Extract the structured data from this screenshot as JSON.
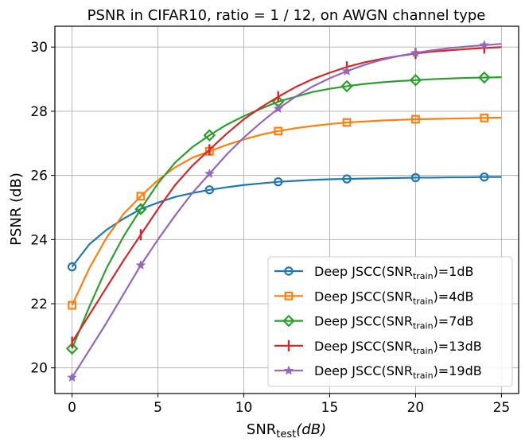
{
  "chart_data": {
    "type": "line",
    "title": "PSNR in CIFAR10, ratio = 1 / 12, on AWGN channel type",
    "xlabel_main": "SNR",
    "xlabel_sub": "test",
    "xlabel_unit": "(dB)",
    "ylabel": "PSNR (dB)",
    "xlim": [
      -1.0,
      26.0
    ],
    "ylim": [
      19.2,
      30.65
    ],
    "xticks": [
      0,
      5,
      10,
      15,
      20,
      25
    ],
    "yticks": [
      20,
      22,
      24,
      26,
      28,
      30
    ],
    "grid": true,
    "legend_position": "lower-right",
    "series": [
      {
        "name": "Deep JSCC(SNR_train)=1dB",
        "legend_prefix": "Deep JSCC(SNR",
        "legend_sub": "train",
        "legend_suffix": ")=1dB",
        "color": "#1f77b4",
        "marker": "circle",
        "x": [
          0,
          1,
          2,
          3,
          4,
          5,
          6,
          7,
          8,
          9,
          10,
          11,
          12,
          13,
          14,
          15,
          16,
          17,
          18,
          19,
          20,
          21,
          22,
          23,
          24,
          25
        ],
        "y": [
          23.15,
          23.85,
          24.3,
          24.65,
          24.95,
          25.15,
          25.33,
          25.45,
          25.55,
          25.63,
          25.7,
          25.75,
          25.8,
          25.83,
          25.86,
          25.88,
          25.89,
          25.9,
          25.91,
          25.92,
          25.93,
          25.93,
          25.94,
          25.94,
          25.95,
          25.95
        ],
        "marker_x": [
          0,
          4,
          8,
          12,
          16,
          20,
          24
        ]
      },
      {
        "name": "Deep JSCC(SNR_train)=4dB",
        "legend_prefix": "Deep JSCC(SNR",
        "legend_sub": "train",
        "legend_suffix": ")=4dB",
        "color": "#ff7f0e",
        "marker": "square",
        "x": [
          0,
          1,
          2,
          3,
          4,
          5,
          6,
          7,
          8,
          9,
          10,
          11,
          12,
          13,
          14,
          15,
          16,
          17,
          18,
          19,
          20,
          21,
          22,
          23,
          24,
          25
        ],
        "y": [
          21.95,
          23.1,
          24.05,
          24.8,
          25.35,
          25.85,
          26.25,
          26.55,
          26.75,
          26.95,
          27.12,
          27.27,
          27.38,
          27.47,
          27.54,
          27.6,
          27.65,
          27.68,
          27.71,
          27.73,
          27.75,
          27.76,
          27.77,
          27.78,
          27.79,
          27.8
        ],
        "marker_x": [
          0,
          4,
          8,
          12,
          16,
          20,
          24
        ]
      },
      {
        "name": "Deep JSCC(SNR_train)=7dB",
        "legend_prefix": "Deep JSCC(SNR",
        "legend_sub": "train",
        "legend_suffix": ")=7dB",
        "color": "#2ca02c",
        "marker": "diamond",
        "x": [
          0,
          1,
          2,
          3,
          4,
          5,
          6,
          7,
          8,
          9,
          10,
          11,
          12,
          13,
          14,
          15,
          16,
          17,
          18,
          19,
          20,
          21,
          22,
          23,
          24,
          25
        ],
        "y": [
          20.6,
          21.9,
          23.1,
          24.1,
          24.95,
          25.75,
          26.4,
          26.88,
          27.25,
          27.58,
          27.85,
          28.08,
          28.3,
          28.45,
          28.6,
          28.7,
          28.78,
          28.85,
          28.9,
          28.94,
          28.97,
          29.0,
          29.02,
          29.04,
          29.05,
          29.06
        ],
        "marker_x": [
          0,
          4,
          8,
          12,
          16,
          20,
          24
        ]
      },
      {
        "name": "Deep JSCC(SNR_train)=13dB",
        "legend_prefix": "Deep JSCC(SNR",
        "legend_sub": "train",
        "legend_suffix": ")=13dB",
        "color": "#d62728",
        "marker": "vline",
        "x": [
          0,
          1,
          2,
          3,
          4,
          5,
          6,
          7,
          8,
          9,
          10,
          11,
          12,
          13,
          14,
          15,
          16,
          17,
          18,
          19,
          20,
          21,
          22,
          23,
          24,
          25
        ],
        "y": [
          20.8,
          21.65,
          22.5,
          23.35,
          24.15,
          24.95,
          25.7,
          26.3,
          26.8,
          27.3,
          27.75,
          28.12,
          28.45,
          28.75,
          29.0,
          29.2,
          29.38,
          29.52,
          29.63,
          29.72,
          29.8,
          29.86,
          29.9,
          29.94,
          29.97,
          30.0
        ],
        "marker_x": [
          0,
          4,
          8,
          12,
          16,
          20,
          24
        ]
      },
      {
        "name": "Deep JSCC(SNR_train)=19dB",
        "legend_prefix": "Deep JSCC(SNR",
        "legend_sub": "train",
        "legend_suffix": ")=19dB",
        "color": "#9467bd",
        "marker": "star",
        "x": [
          0,
          1,
          2,
          3,
          4,
          5,
          6,
          7,
          8,
          9,
          10,
          11,
          12,
          13,
          14,
          15,
          16,
          17,
          18,
          19,
          20,
          21,
          22,
          23,
          24,
          25
        ],
        "y": [
          19.7,
          20.55,
          21.4,
          22.3,
          23.2,
          24.0,
          24.75,
          25.45,
          26.05,
          26.65,
          27.18,
          27.65,
          28.08,
          28.45,
          28.77,
          29.03,
          29.25,
          29.44,
          29.6,
          29.72,
          29.82,
          29.9,
          29.97,
          30.02,
          30.06,
          30.1
        ],
        "marker_x": [
          0,
          4,
          8,
          12,
          16,
          20,
          24
        ]
      }
    ]
  }
}
